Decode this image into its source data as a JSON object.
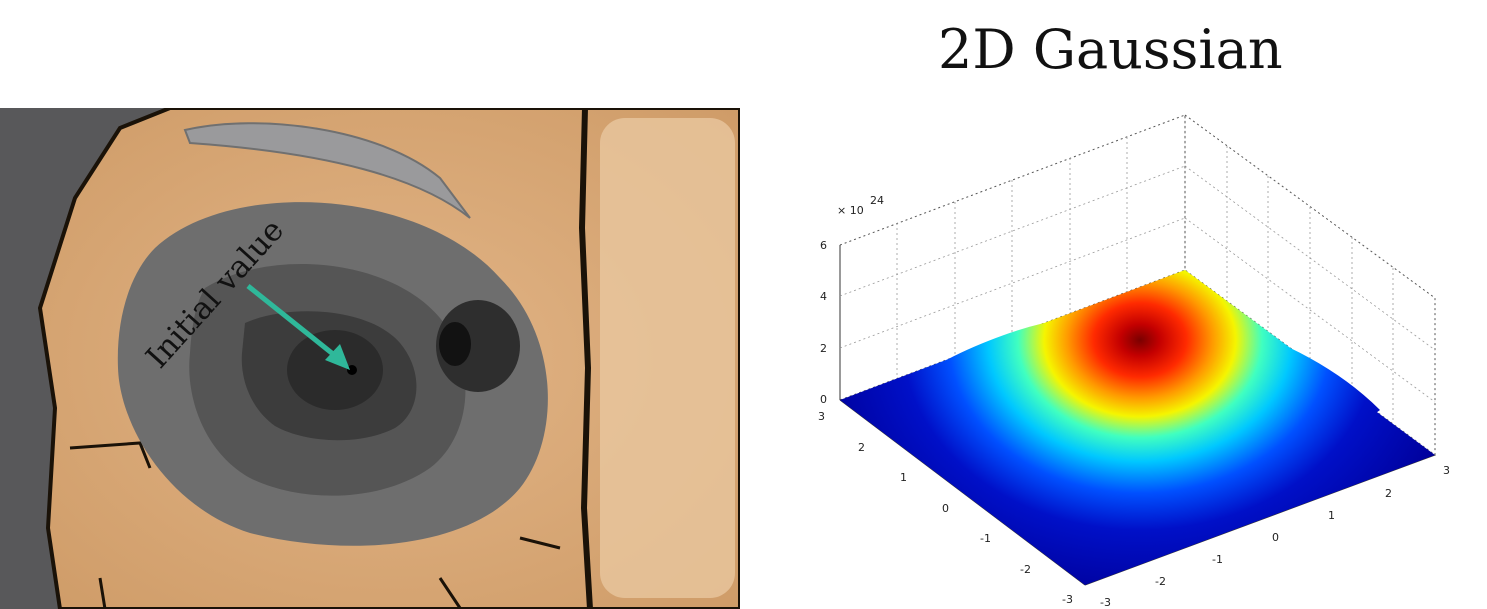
{
  "left_panel": {
    "annotation": "Initial value",
    "colors": {
      "wood": "#d9a978",
      "wood_light": "#e6bb8a",
      "dark_edge": "#1a1208",
      "wall": "#58585a",
      "region_outer": "#6e6e6e",
      "region_mid": "#555555",
      "region_inner": "#3c3c3c",
      "region_core": "#2b2b2b",
      "arrow": "#2fb89a"
    }
  },
  "plot": {
    "title": "2D Gaussian",
    "z_scale_base": "× 10",
    "z_scale_exp": "24",
    "z_ticks": [
      "0",
      "2",
      "4",
      "6"
    ],
    "y_ticks": [
      "-3",
      "-2",
      "-1",
      "0",
      "1",
      "2",
      "3"
    ],
    "x_ticks": [
      "-3",
      "-2",
      "-1",
      "0",
      "1",
      "2",
      "3"
    ]
  },
  "chart_data": {
    "type": "surface",
    "title": "2D Gaussian",
    "x_range": [
      -3,
      3
    ],
    "y_range": [
      -3,
      3
    ],
    "z_range": [
      0,
      6e+24
    ],
    "peak_z": 5e+24,
    "grid": true
  }
}
